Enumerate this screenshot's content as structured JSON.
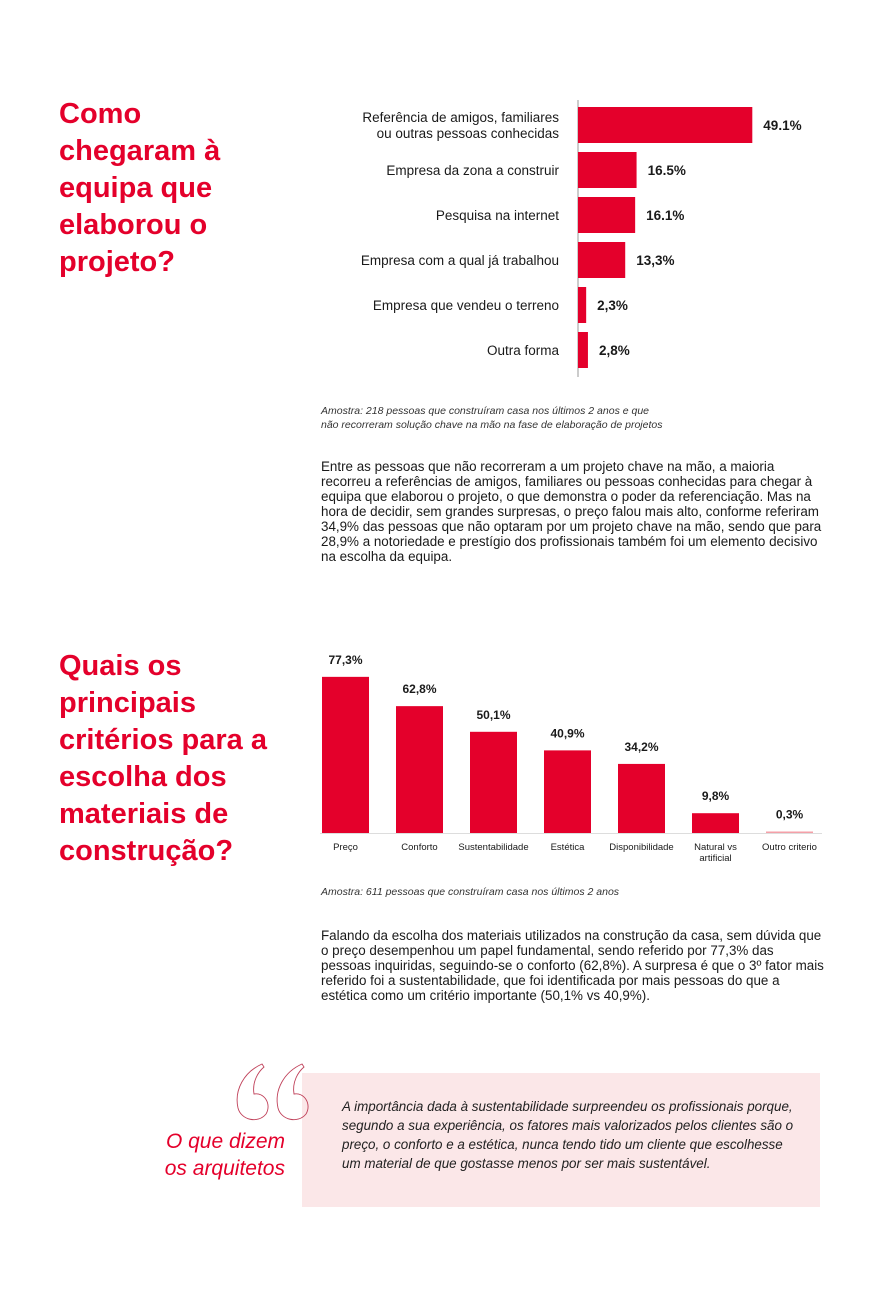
{
  "colors": {
    "accent": "#e4002b",
    "quote_bg": "#fbe7e8",
    "minor_bar": "#f4a0a8"
  },
  "section1": {
    "title": "Como chegaram à equipa que elaborou o projeto?",
    "sample_note_lines": [
      "Amostra: 218 pessoas que construíram casa nos últimos 2 anos e que",
      "não recorreram solução chave na mão na fase de elaboração de projetos"
    ],
    "paragraph": "Entre as pessoas que não recorreram a um projeto chave na mão, a maioria recorreu a referências de amigos, familiares ou pessoas conhecidas para chegar à equipa que elaborou o projeto, o que demonstra o poder da referenciação. Mas na hora de decidir, sem grandes surpresas, o preço falou mais alto, conforme referiram 34,9% das pessoas que não optaram por um projeto chave na mão, sendo que para 28,9% a notoriedade e prestígio dos profissionais também foi um elemento decisivo na escolha da equipa."
  },
  "section2": {
    "title": "Quais os principais critérios para a escolha dos materiais de construção?",
    "sample_note": "Amostra: 611 pessoas que construíram casa nos últimos 2 anos",
    "paragraph": "Falando da escolha dos materiais utilizados na construção da casa, sem dúvida que o preço desempenhou um papel fundamental, sendo referido por 77,3% das pessoas inquiridas, seguindo-se o conforto (62,8%). A surpresa é que o 3º fator mais referido foi a sustentabilidade, que foi identificada por mais pessoas do que a estética como um critério importante (50,1% vs 40,9%)."
  },
  "quote": {
    "icon": "quotation-mark-icon",
    "title_lines": [
      "O que dizem",
      "os arquitetos"
    ],
    "text": "A importância dada à sustentabilidade surpreendeu os profissionais porque, segundo a sua experiência, os fatores mais valorizados pelos clientes são o preço, o conforto e a estética, nunca tendo tido um cliente que escolhesse um material de que gostasse menos por ser mais sustentável."
  },
  "chart_data": [
    {
      "type": "bar",
      "orientation": "horizontal",
      "categories": [
        [
          "Referência de amigos, familiares",
          "ou outras pessoas conhecidas"
        ],
        [
          "Empresa da zona a construir"
        ],
        [
          "Pesquisa na internet"
        ],
        [
          "Empresa com a qual já trabalhou"
        ],
        [
          "Empresa que vendeu o terreno"
        ],
        [
          "Outra forma"
        ]
      ],
      "values": [
        49.1,
        16.5,
        16.1,
        13.3,
        2.3,
        2.8
      ],
      "value_labels": [
        "49.1%",
        "16.5%",
        "16.1%",
        "13,3%",
        "2,3%",
        "2,8%"
      ],
      "grid": false
    },
    {
      "type": "bar",
      "orientation": "vertical",
      "categories": [
        [
          "Preço"
        ],
        [
          "Conforto"
        ],
        [
          "Sustentabilidade"
        ],
        [
          "Estética"
        ],
        [
          "Disponibilidade"
        ],
        [
          "Natural vs",
          "artificial"
        ],
        [
          "Outro criterio"
        ]
      ],
      "values": [
        77.3,
        62.8,
        50.1,
        40.9,
        34.2,
        9.8,
        0.3
      ],
      "value_labels": [
        "77,3%",
        "62,8%",
        "50,1%",
        "40,9%",
        "34,2%",
        "9,8%",
        "0,3%"
      ],
      "grid": false
    }
  ]
}
